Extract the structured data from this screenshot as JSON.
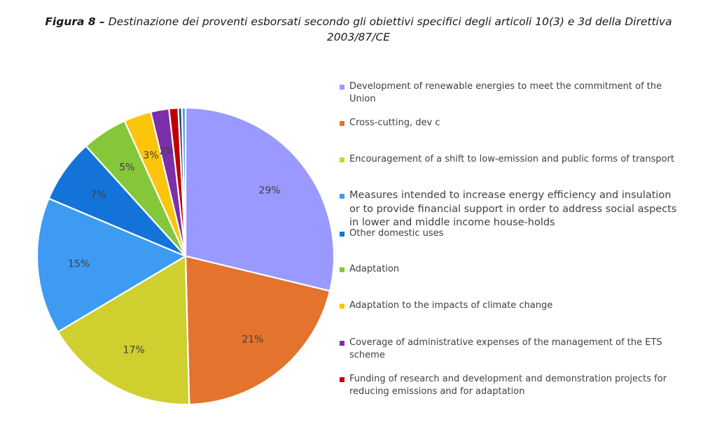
{
  "caption": {
    "figure_label": "Figura 8 –",
    "line1": "Destinazione dei proventi esborsati secondo gli obiettivi specifici degli articoli 10(3) e 3d della Direttiva",
    "line2": "2003/87/CE"
  },
  "chart_data": {
    "type": "pie",
    "title": "Figura 8 – Destinazione dei proventi esborsati secondo gli obiettivi specifici degli articoli 10(3) e 3d della Direttiva 2003/87/CE",
    "slices": [
      {
        "name": "Development of renewable energies to meet the commitment of the Union",
        "value": 29,
        "label": "29%",
        "color": "#9999FF"
      },
      {
        "name": "Cross-cutting, dev c",
        "value": 21,
        "label": "21%",
        "color": "#E3732D"
      },
      {
        "name": "Encouragement of a shift to low-emission and public forms of transport",
        "value": 17,
        "label": "17%",
        "color": "#CFCF2F"
      },
      {
        "name": "Measures intended to increase energy efficiency and insulation or to provide financial support in order to address social aspects in lower and middle income house-holds",
        "value": 15,
        "label": "15%",
        "color": "#3E9BF2"
      },
      {
        "name": "Other domestic uses",
        "value": 7,
        "label": "7%",
        "color": "#1373D9"
      },
      {
        "name": "Adaptation",
        "value": 5,
        "label": "5%",
        "color": "#84C73A"
      },
      {
        "name": "Adaptation to the impacts of climate change",
        "value": 3,
        "label": "3%",
        "color": "#FCC40A"
      },
      {
        "name": "Coverage of administrative expenses of the management of the ETS scheme",
        "value": 2,
        "label": "2%",
        "color": "#7B2FA8"
      },
      {
        "name": "Funding of research and development and demonstration projects for reducing emissions and for adaptation",
        "value": 1,
        "label": "",
        "color": "#C00000"
      },
      {
        "name": "",
        "value": 0.4,
        "label": "",
        "color": "#1F4E79"
      },
      {
        "name": "",
        "value": 0.4,
        "label": "",
        "color": "#5B9BD5"
      }
    ],
    "legend_position": "right"
  }
}
